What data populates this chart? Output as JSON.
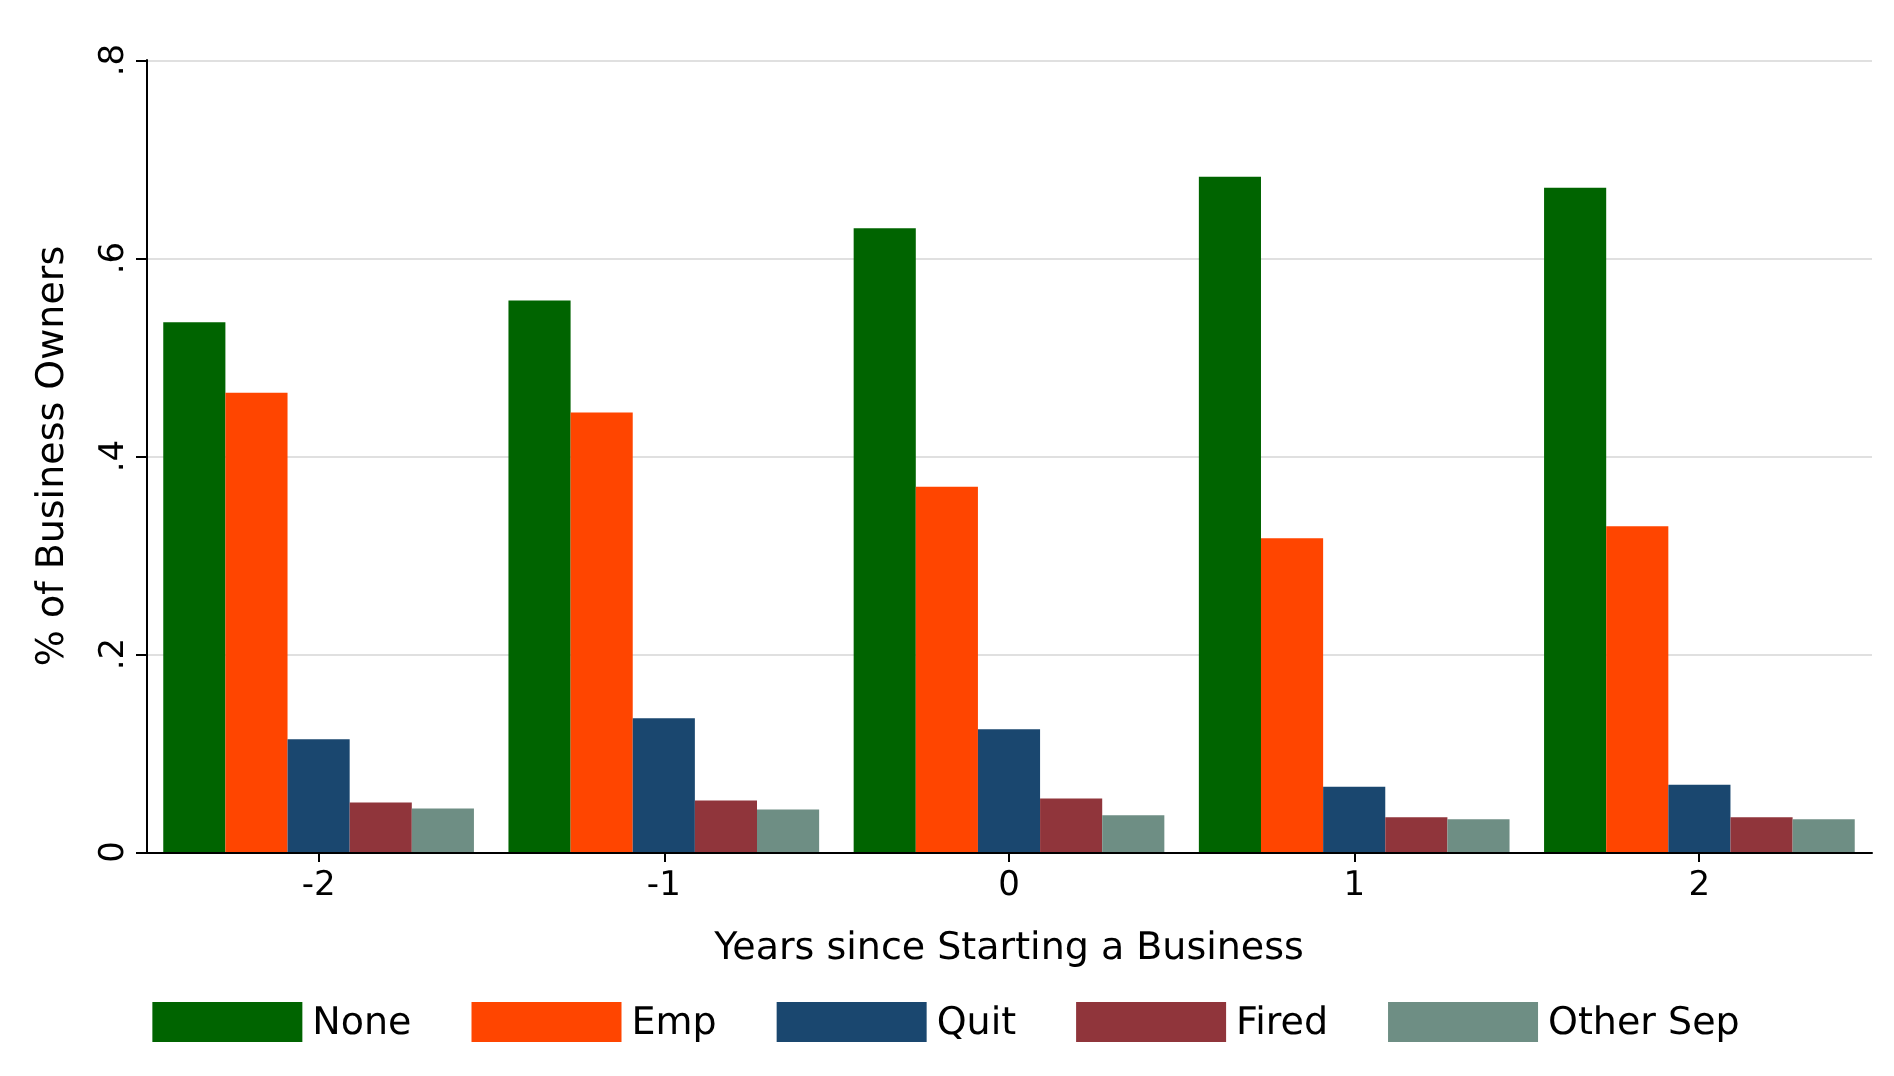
{
  "chart_data": {
    "type": "bar",
    "xlabel": "Years since Starting a Business",
    "ylabel": "% of Business Owners",
    "categories": [
      "-2",
      "-1",
      "0",
      "1",
      "2"
    ],
    "series": [
      {
        "name": "None",
        "color": "#006400",
        "values": [
          0.535,
          0.557,
          0.63,
          0.682,
          0.671
        ]
      },
      {
        "name": "Emp",
        "color": "#ff4500",
        "values": [
          0.464,
          0.444,
          0.369,
          0.317,
          0.329
        ]
      },
      {
        "name": "Quit",
        "color": "#1a476f",
        "values": [
          0.114,
          0.135,
          0.124,
          0.066,
          0.068
        ]
      },
      {
        "name": "Fired",
        "color": "#90353b",
        "values": [
          0.05,
          0.052,
          0.054,
          0.035,
          0.035
        ]
      },
      {
        "name": "Other Sep",
        "color": "#6e8e84",
        "values": [
          0.044,
          0.043,
          0.037,
          0.033,
          0.033
        ]
      }
    ],
    "ylim": [
      0,
      0.8
    ],
    "yticks": [
      {
        "value": 0,
        "label": "0"
      },
      {
        "value": 0.2,
        "label": ".2"
      },
      {
        "value": 0.4,
        "label": ".4"
      },
      {
        "value": 0.6,
        "label": ".6"
      },
      {
        "value": 0.8,
        "label": ".8"
      }
    ],
    "grid": "y",
    "legend": "bottom"
  }
}
